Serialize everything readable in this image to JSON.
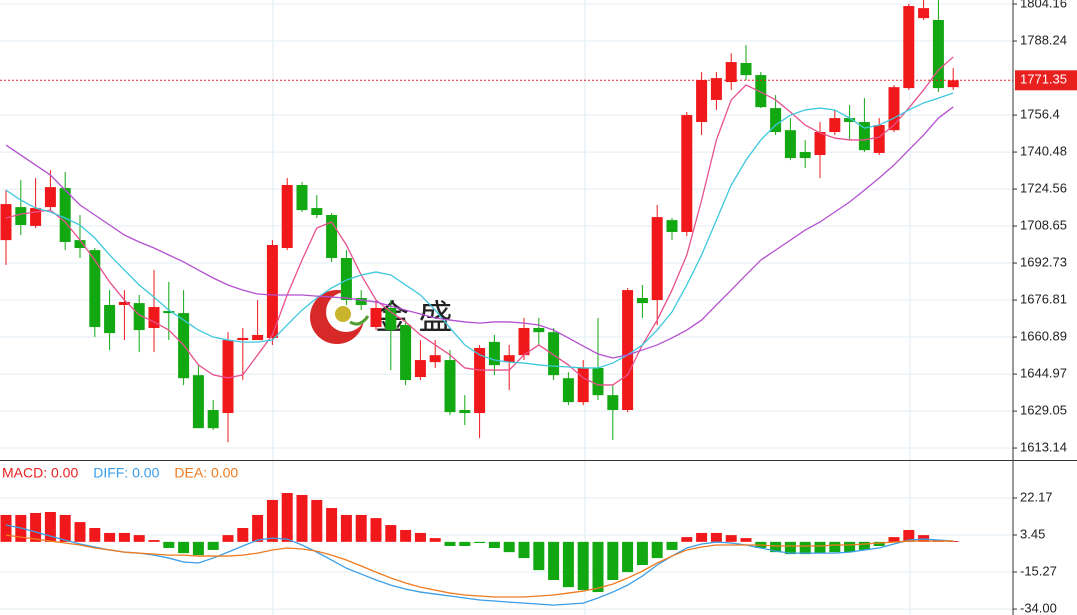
{
  "chart_data": [
    {
      "type": "candlestick",
      "up_color": "#f0181a",
      "down_color": "#12a812",
      "open": [
        1702.6,
        1716.8,
        1708.7,
        1716.8,
        1725.0,
        1702.6,
        1698.3,
        1674.7,
        1674.7,
        1675.5,
        1664.8,
        1672.1,
        1671.2,
        1644.5,
        1629.5,
        1628.2,
        1659.6,
        1659.6,
        1660.5,
        1699.2,
        1726.3,
        1716.4,
        1713.4,
        1694.9,
        1677.7,
        1665.2,
        1673.4,
        1666.1,
        1643.7,
        1650.1,
        1651.0,
        1629.5,
        1628.2,
        1658.8,
        1650.1,
        1653.1,
        1664.8,
        1663.0,
        1643.2,
        1632.9,
        1647.6,
        1635.9,
        1629.5,
        1677.7,
        1676.8,
        1711.2,
        1706.1,
        1753.4,
        1762.9,
        1770.6,
        1778.8,
        1773.6,
        1759.4,
        1749.9,
        1740.5,
        1739.2,
        1749.1,
        1755.1,
        1753.4,
        1740.1,
        1749.9,
        1768.0,
        1798.1,
        1797.3,
        1768.4
      ],
      "high": [
        1724.1,
        1728.4,
        1729.3,
        1732.7,
        1731.9,
        1713.4,
        1699.2,
        1681.1,
        1681.1,
        1679.0,
        1689.7,
        1684.6,
        1681.1,
        1648.8,
        1633.8,
        1663.0,
        1664.8,
        1676.8,
        1702.6,
        1729.3,
        1727.6,
        1722.0,
        1714.2,
        1698.3,
        1681.1,
        1676.8,
        1676.8,
        1668.2,
        1659.6,
        1659.6,
        1655.3,
        1635.9,
        1657.5,
        1661.8,
        1657.5,
        1669.1,
        1669.1,
        1664.8,
        1645.8,
        1651.0,
        1669.1,
        1640.2,
        1682.0,
        1683.3,
        1717.7,
        1712.1,
        1757.7,
        1774.9,
        1774.9,
        1783.0,
        1786.5,
        1774.9,
        1765.0,
        1755.1,
        1745.6,
        1753.4,
        1758.6,
        1760.7,
        1763.7,
        1755.1,
        1769.3,
        1804.2,
        1805.9,
        1805.9,
        1776.6
      ],
      "low": [
        1691.9,
        1704.8,
        1707.8,
        1715.5,
        1698.3,
        1694.9,
        1660.9,
        1655.3,
        1659.6,
        1654.4,
        1654.4,
        1659.6,
        1640.2,
        1621.7,
        1620.9,
        1615.7,
        1642.4,
        1659.6,
        1657.5,
        1698.3,
        1714.7,
        1712.1,
        1693.2,
        1674.7,
        1672.5,
        1663.9,
        1646.7,
        1640.2,
        1642.4,
        1647.6,
        1627.3,
        1623.0,
        1617.4,
        1644.5,
        1638.1,
        1651.0,
        1657.5,
        1642.4,
        1631.6,
        1631.6,
        1633.8,
        1616.6,
        1628.6,
        1669.1,
        1666.1,
        1702.6,
        1704.3,
        1747.8,
        1758.6,
        1767.2,
        1771.5,
        1759.4,
        1747.8,
        1737.0,
        1733.6,
        1729.3,
        1747.8,
        1745.6,
        1740.5,
        1739.2,
        1749.1,
        1767.2,
        1797.3,
        1766.3,
        1767.2
      ],
      "close": [
        1718.1,
        1709.1,
        1716.4,
        1725.4,
        1701.8,
        1699.2,
        1665.2,
        1662.6,
        1676.0,
        1663.9,
        1673.8,
        1671.2,
        1643.2,
        1621.7,
        1621.7,
        1659.6,
        1660.5,
        1661.8,
        1700.5,
        1726.3,
        1715.5,
        1713.4,
        1694.9,
        1676.8,
        1674.7,
        1673.4,
        1663.9,
        1642.4,
        1651.0,
        1653.1,
        1628.6,
        1628.2,
        1656.2,
        1648.8,
        1653.1,
        1664.8,
        1663.0,
        1644.5,
        1632.9,
        1647.6,
        1635.9,
        1629.5,
        1681.1,
        1675.5,
        1712.5,
        1706.1,
        1756.4,
        1771.5,
        1772.3,
        1779.2,
        1773.6,
        1759.8,
        1749.1,
        1737.9,
        1737.9,
        1749.1,
        1755.1,
        1753.4,
        1741.3,
        1752.1,
        1768.4,
        1803.3,
        1802.4,
        1768.0,
        1771.35
      ],
      "series": [
        {
          "color": "#e8508e",
          "values": [
            1712.1,
            1713.8,
            1714.7,
            1715.5,
            1710.4,
            1702.6,
            1694.0,
            1684.6,
            1676.8,
            1670.4,
            1667.4,
            1663.9,
            1657.5,
            1648.9,
            1644.6,
            1643.3,
            1644.6,
            1653.2,
            1661.8,
            1679.0,
            1694.0,
            1707.8,
            1710.4,
            1700.5,
            1687.6,
            1676.8,
            1671.7,
            1667.4,
            1661.8,
            1657.5,
            1653.2,
            1647.6,
            1646.7,
            1646.7,
            1646.7,
            1653.2,
            1657.5,
            1653.2,
            1648.9,
            1643.3,
            1640.3,
            1640.3,
            1644.6,
            1657.5,
            1668.2,
            1681.1,
            1696.2,
            1719.8,
            1745.7,
            1762.9,
            1769.3,
            1766.3,
            1762.9,
            1757.7,
            1752.1,
            1748.7,
            1746.5,
            1745.7,
            1745.7,
            1746.9,
            1752.1,
            1759.4,
            1767.2,
            1775.8,
            1781.4
          ]
        },
        {
          "color": "#3ec8de",
          "values": [
            1724.1,
            1719.8,
            1716.4,
            1714.7,
            1712.1,
            1709.1,
            1703.5,
            1696.2,
            1689.7,
            1683.3,
            1678.1,
            1672.5,
            1668.2,
            1663.9,
            1660.9,
            1659.6,
            1658.7,
            1658.7,
            1659.6,
            1666.1,
            1672.5,
            1677.7,
            1682.0,
            1685.4,
            1687.6,
            1688.9,
            1687.6,
            1683.3,
            1679.0,
            1672.5,
            1664.8,
            1657.5,
            1653.2,
            1651.0,
            1650.1,
            1649.7,
            1648.9,
            1648.4,
            1648.0,
            1647.6,
            1647.6,
            1649.7,
            1653.2,
            1657.5,
            1663.9,
            1671.7,
            1683.3,
            1696.2,
            1711.2,
            1726.3,
            1737.0,
            1745.7,
            1752.1,
            1756.4,
            1758.6,
            1759.4,
            1758.6,
            1755.1,
            1750.8,
            1752.1,
            1755.1,
            1758.6,
            1761.6,
            1763.7,
            1765.9
          ]
        },
        {
          "color": "#b450d0",
          "values": [
            1743.5,
            1739.2,
            1734.9,
            1730.6,
            1724.1,
            1717.7,
            1713.4,
            1709.1,
            1704.8,
            1701.8,
            1699.2,
            1696.2,
            1693.2,
            1689.7,
            1686.3,
            1683.3,
            1681.1,
            1679.4,
            1679.0,
            1679.0,
            1679.0,
            1678.5,
            1678.1,
            1677.7,
            1676.8,
            1676.0,
            1674.2,
            1672.5,
            1670.8,
            1669.1,
            1668.2,
            1667.4,
            1666.9,
            1667.4,
            1667.4,
            1666.9,
            1666.1,
            1663.9,
            1660.5,
            1657.0,
            1653.6,
            1651.9,
            1653.2,
            1655.3,
            1657.5,
            1660.5,
            1663.9,
            1668.2,
            1674.7,
            1681.1,
            1687.6,
            1694.0,
            1698.3,
            1702.6,
            1706.9,
            1710.4,
            1714.7,
            1719.0,
            1724.1,
            1729.3,
            1734.9,
            1741.4,
            1747.8,
            1755.1,
            1759.9
          ]
        }
      ],
      "last_price": 1771.35,
      "last_price_color": "#e8211f",
      "watermark": "金 盛",
      "ylim": [
        1608.0,
        1805.9
      ],
      "yticks": [
        1804.16,
        1788.24,
        1756.4,
        1740.48,
        1724.56,
        1708.65,
        1692.73,
        1676.81,
        1660.89,
        1644.97,
        1629.05,
        1613.14
      ],
      "grid": true
    },
    {
      "type": "macd",
      "name": "MACD: 0.00",
      "name_color": "#e8211f",
      "up_color": "#f0181a",
      "down_color": "#12a812",
      "values": [
        13.6,
        13.6,
        14.6,
        15.1,
        13.6,
        10.0,
        7.0,
        4.5,
        4.5,
        3.4,
        0.9,
        -3.1,
        -5.7,
        -6.7,
        -4.1,
        3.4,
        7.0,
        13.6,
        21.2,
        24.7,
        23.7,
        21.2,
        17.1,
        13.6,
        13.6,
        12.0,
        8.5,
        6.0,
        4.5,
        1.9,
        -2.1,
        -2.1,
        -0.6,
        -3.1,
        -5.2,
        -8.2,
        -14.3,
        -19.3,
        -22.9,
        -24.4,
        -25.4,
        -19.3,
        -15.3,
        -11.7,
        -8.2,
        -4.1,
        2.4,
        4.5,
        4.5,
        3.4,
        1.9,
        -3.1,
        -5.2,
        -6.2,
        -6.2,
        -5.7,
        -5.2,
        -5.2,
        -4.1,
        -2.1,
        2.4,
        6.0,
        3.4,
        0.9,
        0.4
      ],
      "series": [
        {
          "name": "DIFF: 0.00",
          "color": "#3a9ee8",
          "values": [
            8.5,
            7.0,
            5.0,
            2.9,
            0.9,
            -1.1,
            -2.6,
            -4.1,
            -5.2,
            -5.7,
            -6.7,
            -8.2,
            -10.2,
            -10.7,
            -8.2,
            -5.2,
            -2.1,
            0.9,
            1.9,
            1.4,
            -1.6,
            -5.2,
            -9.2,
            -13.3,
            -16.3,
            -19.3,
            -21.9,
            -23.9,
            -25.4,
            -26.4,
            -27.4,
            -28.4,
            -29.4,
            -29.9,
            -30.5,
            -31.0,
            -31.5,
            -32.0,
            -31.5,
            -31.0,
            -28.4,
            -25.4,
            -21.9,
            -17.3,
            -11.7,
            -7.2,
            -3.1,
            -1.1,
            -0.1,
            -0.6,
            -1.6,
            -3.1,
            -4.7,
            -5.7,
            -5.7,
            -5.7,
            -5.7,
            -5.2,
            -4.1,
            -3.1,
            -1.1,
            0.9,
            1.4,
            0.9,
            0.4
          ]
        },
        {
          "name": "DEA: 0.00",
          "color": "#f07a1e",
          "values": [
            3.4,
            2.4,
            1.4,
            0.4,
            -0.6,
            -1.6,
            -3.1,
            -4.1,
            -5.2,
            -5.7,
            -6.2,
            -6.7,
            -6.7,
            -7.2,
            -7.2,
            -7.2,
            -6.7,
            -5.7,
            -4.1,
            -3.1,
            -3.6,
            -4.7,
            -6.7,
            -9.2,
            -12.2,
            -15.3,
            -18.3,
            -20.8,
            -22.9,
            -24.4,
            -25.9,
            -26.9,
            -27.4,
            -27.9,
            -27.9,
            -27.9,
            -27.4,
            -26.9,
            -25.9,
            -24.9,
            -23.4,
            -21.4,
            -18.3,
            -14.8,
            -10.7,
            -7.2,
            -4.1,
            -2.6,
            -1.6,
            -1.6,
            -1.6,
            -1.6,
            -2.1,
            -2.1,
            -2.1,
            -2.1,
            -1.6,
            -1.6,
            -1.1,
            -0.6,
            -0.1,
            0.4,
            0.4,
            0.4,
            0.4
          ]
        }
      ],
      "ylim": [
        -37.0,
        41.4
      ],
      "yticks": [
        22.17,
        3.45,
        -15.27,
        {
          "value": -34,
          "label": "-34.00"
        }
      ],
      "grid": true
    }
  ]
}
